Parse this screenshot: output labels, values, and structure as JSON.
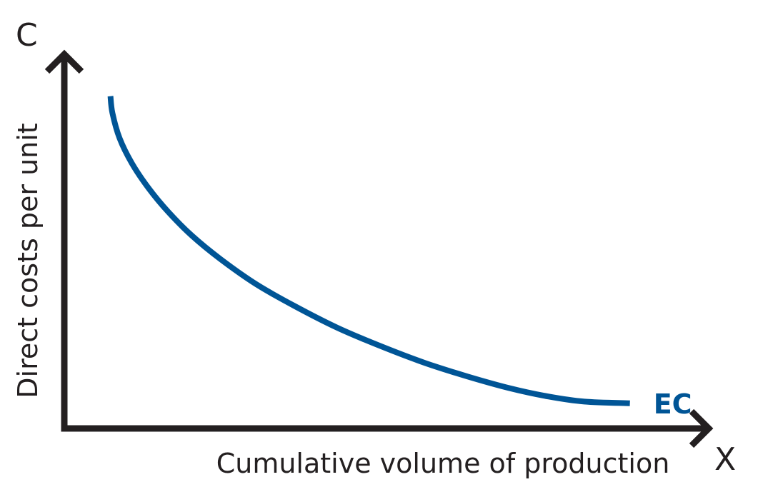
{
  "chart_data": {
    "type": "line",
    "title": "",
    "y_axis_symbol": "C",
    "x_axis_symbol": "X",
    "ylabel": "Direct costs per unit",
    "xlabel": "Cumulative volume of production",
    "grid": false,
    "ticks": false,
    "xlim": [
      0,
      1
    ],
    "ylim": [
      0,
      1
    ],
    "series": [
      {
        "name": "EC",
        "color": "#005596",
        "x": [
          0.071,
          0.074,
          0.085,
          0.104,
          0.13,
          0.16,
          0.196,
          0.24,
          0.295,
          0.354,
          0.42,
          0.487,
          0.555,
          0.62,
          0.685,
          0.745,
          0.8,
          0.87
        ],
        "y": [
          0.99,
          0.94,
          0.865,
          0.79,
          0.715,
          0.645,
          0.575,
          0.505,
          0.43,
          0.365,
          0.3,
          0.245,
          0.195,
          0.155,
          0.12,
          0.095,
          0.08,
          0.075
        ]
      }
    ]
  }
}
